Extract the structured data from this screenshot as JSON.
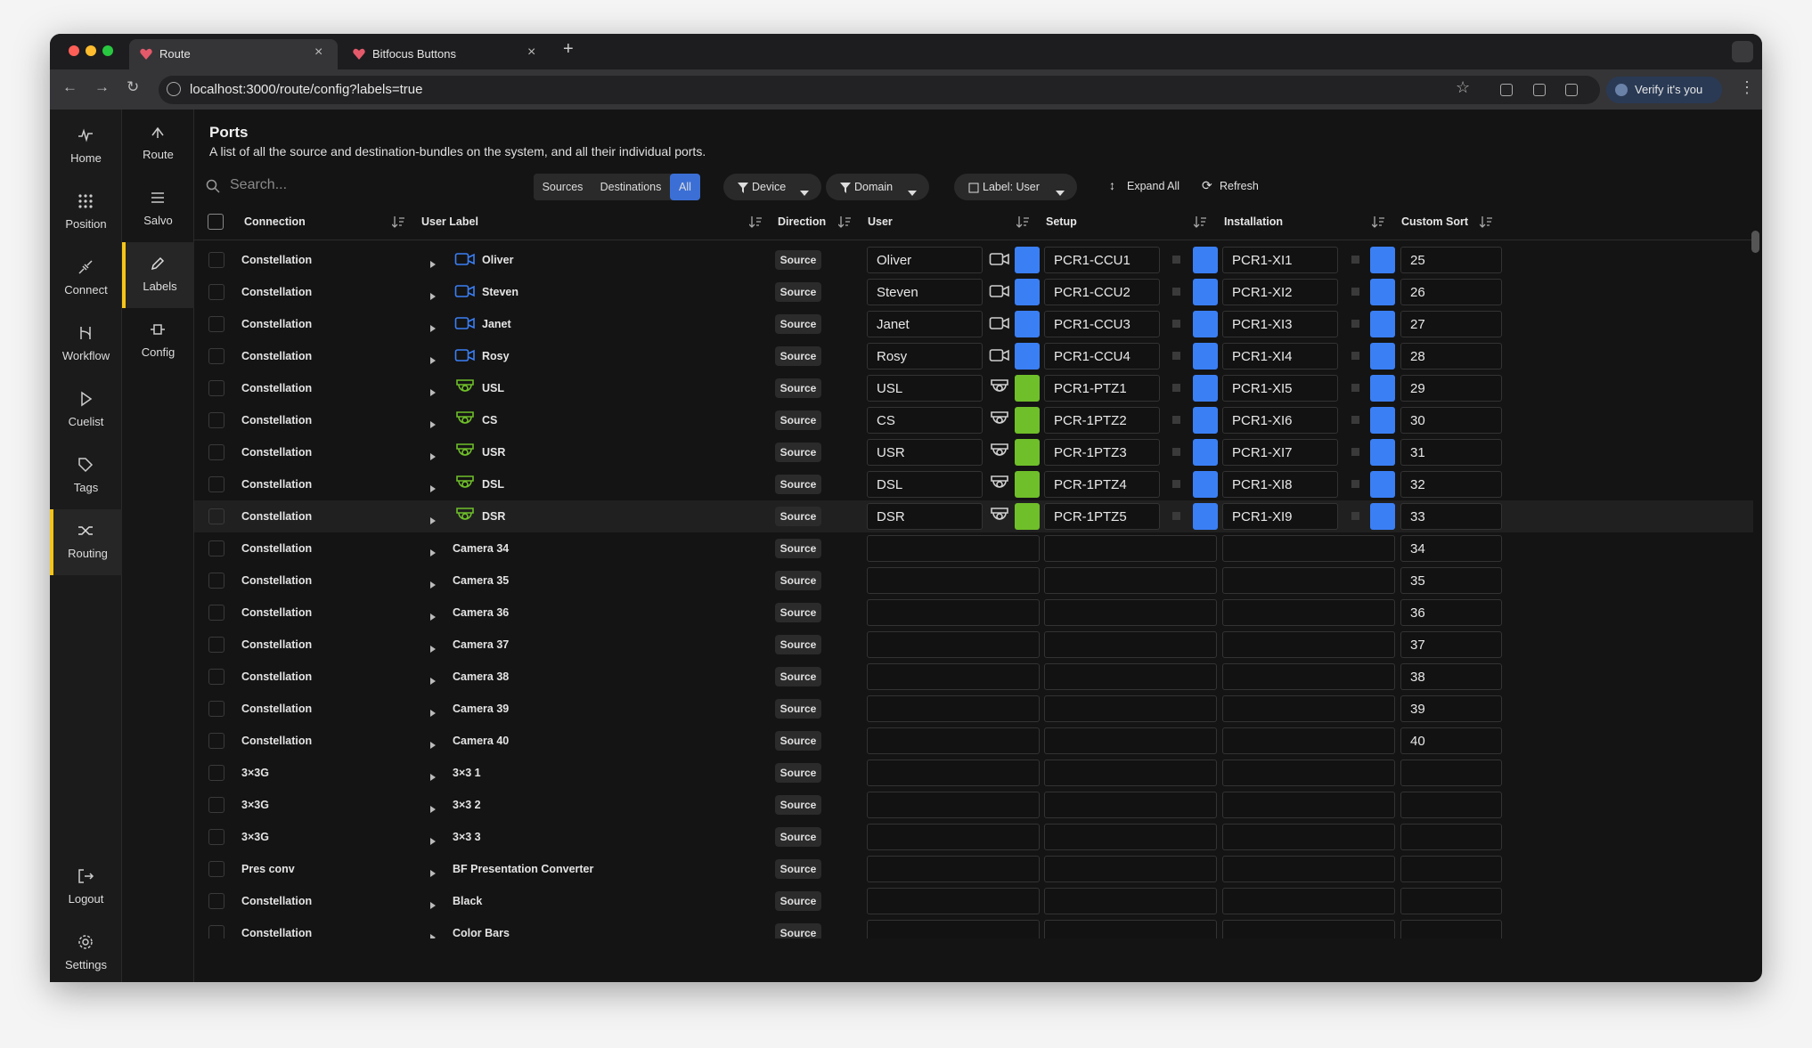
{
  "browser": {
    "tabs": [
      "Route",
      "Bitfocus Buttons"
    ],
    "url": "localhost:3000/route/config?labels=true",
    "profile": "Verify it's you"
  },
  "nav": [
    "Home",
    "Position",
    "Connect",
    "Workflow",
    "Cuelist",
    "Tags",
    "Routing"
  ],
  "nav_bottom": [
    "Logout",
    "Settings"
  ],
  "subnav": [
    "Route",
    "Salvo",
    "Labels",
    "Config"
  ],
  "page": {
    "title": "Ports",
    "description": "A list of all the source and destination-bundles on the system, and all their individual ports."
  },
  "toolbar": {
    "search_placeholder": "Search...",
    "segments": [
      "Sources",
      "Destinations",
      "All"
    ],
    "filters": [
      "Device",
      "Domain"
    ],
    "label_select": "Label: User",
    "actions": [
      "Expand All",
      "Refresh"
    ]
  },
  "table": {
    "columns": [
      "Connection",
      "User Label",
      "Direction",
      "User",
      "Setup",
      "Installation",
      "Custom Sort"
    ],
    "rows": [
      {
        "connection": "Constellation",
        "label": "Oliver",
        "icon": "camera",
        "direction": "Source",
        "user": "Oliver",
        "user_color": "#3b7ff5",
        "setup": "PCR1-CCU1",
        "setup_color": "#3b7ff5",
        "installation": "PCR1-XI1",
        "installation_color": "#3b7ff5",
        "sort": 25
      },
      {
        "connection": "Constellation",
        "label": "Steven",
        "icon": "camera",
        "direction": "Source",
        "user": "Steven",
        "user_color": "#3b7ff5",
        "setup": "PCR1-CCU2",
        "setup_color": "#3b7ff5",
        "installation": "PCR1-XI2",
        "installation_color": "#3b7ff5",
        "sort": 26
      },
      {
        "connection": "Constellation",
        "label": "Janet",
        "icon": "camera",
        "direction": "Source",
        "user": "Janet",
        "user_color": "#3b7ff5",
        "setup": "PCR1-CCU3",
        "setup_color": "#3b7ff5",
        "installation": "PCR1-XI3",
        "installation_color": "#3b7ff5",
        "sort": 27
      },
      {
        "connection": "Constellation",
        "label": "Rosy",
        "icon": "camera",
        "direction": "Source",
        "user": "Rosy",
        "user_color": "#3b7ff5",
        "setup": "PCR1-CCU4",
        "setup_color": "#3b7ff5",
        "installation": "PCR1-XI4",
        "installation_color": "#3b7ff5",
        "sort": 28
      },
      {
        "connection": "Constellation",
        "label": "USL",
        "icon": "ptz",
        "direction": "Source",
        "user": "USL",
        "user_color": "#6fbf2a",
        "setup": "PCR1-PTZ1",
        "setup_color": "#3b7ff5",
        "installation": "PCR1-XI5",
        "installation_color": "#3b7ff5",
        "sort": 29
      },
      {
        "connection": "Constellation",
        "label": "CS",
        "icon": "ptz",
        "direction": "Source",
        "user": "CS",
        "user_color": "#6fbf2a",
        "setup": "PCR-1PTZ2",
        "setup_color": "#3b7ff5",
        "installation": "PCR1-XI6",
        "installation_color": "#3b7ff5",
        "sort": 30
      },
      {
        "connection": "Constellation",
        "label": "USR",
        "icon": "ptz",
        "direction": "Source",
        "user": "USR",
        "user_color": "#6fbf2a",
        "setup": "PCR-1PTZ3",
        "setup_color": "#3b7ff5",
        "installation": "PCR1-XI7",
        "installation_color": "#3b7ff5",
        "sort": 31
      },
      {
        "connection": "Constellation",
        "label": "DSL",
        "icon": "ptz",
        "direction": "Source",
        "user": "DSL",
        "user_color": "#6fbf2a",
        "setup": "PCR-1PTZ4",
        "setup_color": "#3b7ff5",
        "installation": "PCR1-XI8",
        "installation_color": "#3b7ff5",
        "sort": 32
      },
      {
        "connection": "Constellation",
        "label": "DSR",
        "icon": "ptz",
        "direction": "Source",
        "user": "DSR",
        "user_color": "#6fbf2a",
        "setup": "PCR-1PTZ5",
        "setup_color": "#3b7ff5",
        "installation": "PCR1-XI9",
        "installation_color": "#3b7ff5",
        "sort": 33,
        "highlighted": true
      },
      {
        "connection": "Constellation",
        "label": "Camera 34",
        "direction": "Source",
        "sort": 34
      },
      {
        "connection": "Constellation",
        "label": "Camera 35",
        "direction": "Source",
        "sort": 35
      },
      {
        "connection": "Constellation",
        "label": "Camera 36",
        "direction": "Source",
        "sort": 36
      },
      {
        "connection": "Constellation",
        "label": "Camera 37",
        "direction": "Source",
        "sort": 37
      },
      {
        "connection": "Constellation",
        "label": "Camera 38",
        "direction": "Source",
        "sort": 38
      },
      {
        "connection": "Constellation",
        "label": "Camera 39",
        "direction": "Source",
        "sort": 39
      },
      {
        "connection": "Constellation",
        "label": "Camera 40",
        "direction": "Source",
        "sort": 40
      },
      {
        "connection": "3×3G",
        "label": "3×3 1",
        "direction": "Source"
      },
      {
        "connection": "3×3G",
        "label": "3×3 2",
        "direction": "Source"
      },
      {
        "connection": "3×3G",
        "label": "3×3 3",
        "direction": "Source"
      },
      {
        "connection": "Pres conv",
        "label": "BF Presentation Converter",
        "direction": "Source"
      },
      {
        "connection": "Constellation",
        "label": "Black",
        "direction": "Source"
      },
      {
        "connection": "Constellation",
        "label": "Color Bars",
        "direction": "Source"
      }
    ]
  }
}
